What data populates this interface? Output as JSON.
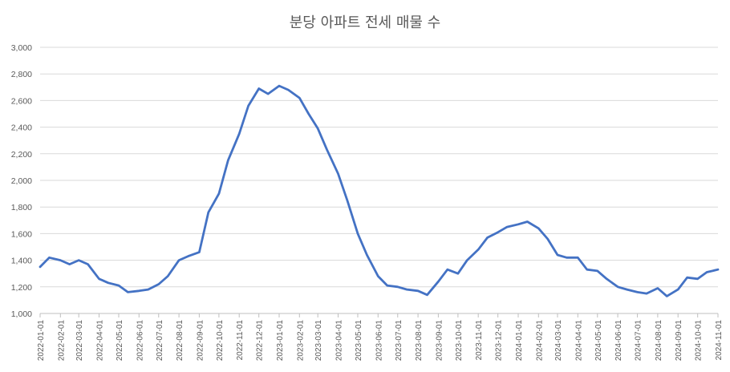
{
  "chart_data": {
    "type": "line",
    "title": "분당 아파트 전세 매물 수",
    "xlabel": "",
    "ylabel": "",
    "ylim": [
      1000,
      3000
    ],
    "y_ticks": [
      "1,000",
      "1,200",
      "1,400",
      "1,600",
      "1,800",
      "2,000",
      "2,200",
      "2,400",
      "2,600",
      "2,800",
      "3,000"
    ],
    "x_ticks": [
      "2022-01-01",
      "2022-02-01",
      "2022-03-01",
      "2022-04-01",
      "2022-05-01",
      "2022-06-01",
      "2022-07-01",
      "2022-08-01",
      "2022-09-01",
      "2022-10-01",
      "2022-11-01",
      "2022-12-01",
      "2023-01-01",
      "2023-02-01",
      "2023-03-01",
      "2023-04-01",
      "2023-05-01",
      "2023-06-01",
      "2023-07-01",
      "2023-08-01",
      "2023-09-01",
      "2023-10-01",
      "2023-11-01",
      "2023-12-01",
      "2024-01-01",
      "2024-02-01",
      "2024-03-01",
      "2024-04-01",
      "2024-05-01",
      "2024-06-01",
      "2024-07-01",
      "2024-08-01",
      "2024-09-01",
      "2024-10-01",
      "2024-11-01"
    ],
    "grid": true,
    "legend": "none",
    "series": [
      {
        "color": "#4472c4",
        "x": [
          "2022-01-01",
          "2022-01-15",
          "2022-02-01",
          "2022-02-15",
          "2022-03-01",
          "2022-03-15",
          "2022-04-01",
          "2022-04-15",
          "2022-05-01",
          "2022-05-15",
          "2022-06-01",
          "2022-06-15",
          "2022-07-01",
          "2022-07-15",
          "2022-08-01",
          "2022-08-15",
          "2022-09-01",
          "2022-09-15",
          "2022-10-01",
          "2022-10-15",
          "2022-11-01",
          "2022-11-15",
          "2022-12-01",
          "2022-12-15",
          "2023-01-01",
          "2023-01-15",
          "2023-02-01",
          "2023-02-15",
          "2023-03-01",
          "2023-03-15",
          "2023-04-01",
          "2023-04-15",
          "2023-05-01",
          "2023-05-15",
          "2023-06-01",
          "2023-06-15",
          "2023-07-01",
          "2023-07-15",
          "2023-08-01",
          "2023-08-15",
          "2023-09-01",
          "2023-09-15",
          "2023-10-01",
          "2023-10-15",
          "2023-11-01",
          "2023-11-15",
          "2023-12-01",
          "2023-12-15",
          "2024-01-01",
          "2024-01-15",
          "2024-02-01",
          "2024-02-15",
          "2024-03-01",
          "2024-03-15",
          "2024-04-01",
          "2024-04-15",
          "2024-05-01",
          "2024-05-15",
          "2024-06-01",
          "2024-06-15",
          "2024-07-01",
          "2024-07-15",
          "2024-08-01",
          "2024-08-15",
          "2024-09-01",
          "2024-09-15",
          "2024-10-01",
          "2024-10-15",
          "2024-11-01"
        ],
        "values": [
          1350,
          1420,
          1400,
          1370,
          1400,
          1370,
          1260,
          1230,
          1210,
          1160,
          1170,
          1180,
          1220,
          1280,
          1400,
          1430,
          1460,
          1760,
          1900,
          2150,
          2350,
          2560,
          2690,
          2650,
          2710,
          2680,
          2620,
          2500,
          2390,
          2230,
          2050,
          1850,
          1600,
          1440,
          1280,
          1210,
          1200,
          1180,
          1170,
          1140,
          1240,
          1330,
          1300,
          1400,
          1480,
          1570,
          1610,
          1650,
          1670,
          1690,
          1640,
          1560,
          1440,
          1420,
          1420,
          1330,
          1320,
          1260,
          1200,
          1180,
          1160,
          1150,
          1190,
          1130,
          1180,
          1270,
          1260,
          1310,
          1330
        ]
      }
    ]
  }
}
